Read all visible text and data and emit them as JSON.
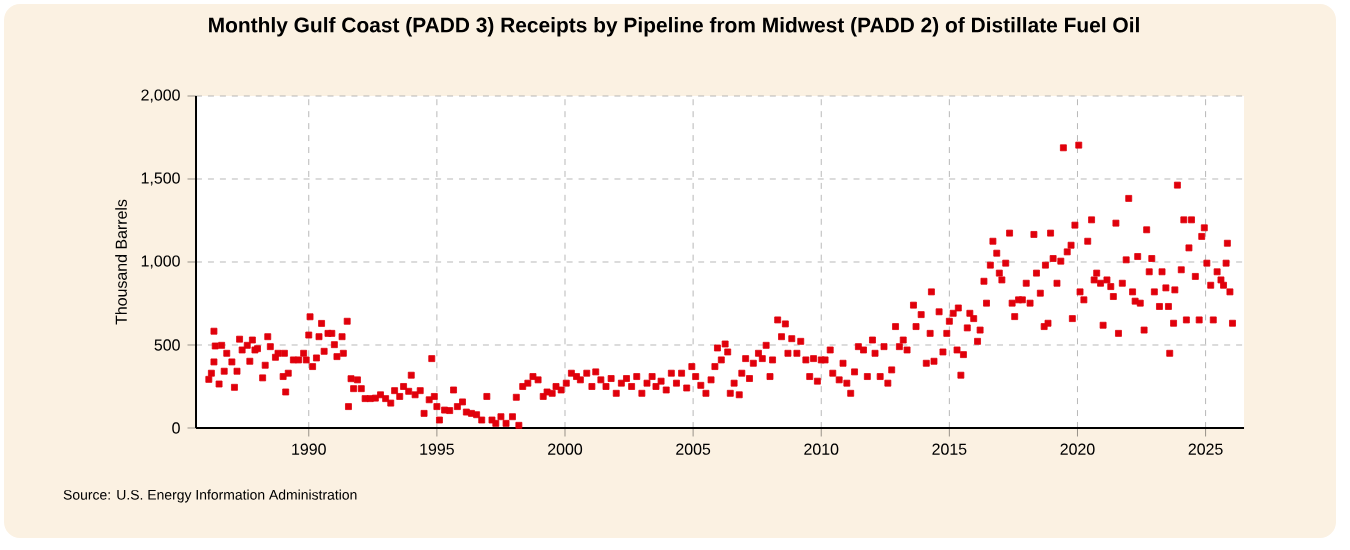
{
  "chart_data": {
    "type": "scatter",
    "title": "Monthly Gulf Coast (PADD 3) Receipts by Pipeline from Midwest (PADD 2) of Distillate Fuel Oil",
    "ylabel": "Thousand Barrels",
    "annotations": [
      "Source: U.S. Energy Information Administration"
    ],
    "color": "#e0000b",
    "marker": "square",
    "grid": true,
    "xlim": [
      1985.6,
      2026.5
    ],
    "ylim": [
      0,
      2000
    ],
    "xticks": [
      1990,
      1995,
      2000,
      2005,
      2010,
      2015,
      2020,
      2025
    ],
    "yticks": [
      0,
      500,
      {
        "value": 1000,
        "label": "1,000"
      },
      {
        "value": 1500,
        "label": "1,500"
      },
      {
        "value": 2000,
        "label": "2,000"
      }
    ],
    "x": [
      1986.1,
      1986.2,
      1986.3,
      1986.3,
      1986.35,
      1986.5,
      1986.6,
      1986.7,
      1986.8,
      1987.0,
      1987.1,
      1987.2,
      1987.3,
      1987.4,
      1987.6,
      1987.7,
      1987.8,
      1987.9,
      1988.0,
      1988.2,
      1988.3,
      1988.4,
      1988.5,
      1988.7,
      1988.8,
      1989.0,
      1989.05,
      1989.1,
      1989.2,
      1989.4,
      1989.6,
      1989.8,
      1989.9,
      1990.0,
      1990.05,
      1990.15,
      1990.3,
      1990.4,
      1990.5,
      1990.6,
      1990.75,
      1990.9,
      1991.0,
      1991.1,
      1991.3,
      1991.35,
      1991.5,
      1991.55,
      1991.65,
      1991.75,
      1991.9,
      1992.05,
      1992.2,
      1992.4,
      1992.6,
      1992.8,
      1993.0,
      1993.2,
      1993.35,
      1993.55,
      1993.7,
      1993.9,
      1994.0,
      1994.15,
      1994.35,
      1994.5,
      1994.7,
      1994.8,
      1994.9,
      1995.0,
      1995.1,
      1995.3,
      1995.5,
      1995.65,
      1995.8,
      1996.0,
      1996.15,
      1996.35,
      1996.55,
      1996.75,
      1996.95,
      1997.15,
      1997.3,
      1997.5,
      1997.7,
      1997.95,
      1998.1,
      1998.2,
      1998.35,
      1998.55,
      1998.75,
      1998.95,
      1999.15,
      1999.3,
      1999.5,
      1999.65,
      1999.85,
      2000.05,
      2000.25,
      2000.45,
      2000.6,
      2000.85,
      2001.05,
      2001.2,
      2001.4,
      2001.6,
      2001.8,
      2002.0,
      2002.2,
      2002.4,
      2002.6,
      2002.8,
      2003.0,
      2003.2,
      2003.4,
      2003.55,
      2003.75,
      2003.95,
      2004.15,
      2004.35,
      2004.55,
      2004.75,
      2004.95,
      2005.1,
      2005.3,
      2005.5,
      2005.7,
      2005.85,
      2005.95,
      2006.1,
      2006.25,
      2006.35,
      2006.45,
      2006.6,
      2006.8,
      2006.9,
      2007.05,
      2007.2,
      2007.35,
      2007.55,
      2007.7,
      2007.85,
      2008.0,
      2008.1,
      2008.3,
      2008.45,
      2008.6,
      2008.7,
      2008.85,
      2009.05,
      2009.2,
      2009.4,
      2009.55,
      2009.7,
      2009.85,
      2010.0,
      2010.15,
      2010.35,
      2010.45,
      2010.7,
      2010.85,
      2011.0,
      2011.15,
      2011.3,
      2011.45,
      2011.65,
      2011.8,
      2012.0,
      2012.1,
      2012.3,
      2012.45,
      2012.6,
      2012.75,
      2012.9,
      2013.05,
      2013.2,
      2013.35,
      2013.6,
      2013.7,
      2013.9,
      2014.1,
      2014.25,
      2014.3,
      2014.4,
      2014.6,
      2014.75,
      2014.9,
      2015.0,
      2015.15,
      2015.3,
      2015.35,
      2015.45,
      2015.55,
      2015.7,
      2015.8,
      2015.95,
      2016.1,
      2016.2,
      2016.35,
      2016.45,
      2016.6,
      2016.7,
      2016.85,
      2016.95,
      2017.05,
      2017.2,
      2017.35,
      2017.45,
      2017.55,
      2017.7,
      2017.85,
      2018.0,
      2018.15,
      2018.3,
      2018.4,
      2018.55,
      2018.7,
      2018.75,
      2018.85,
      2018.95,
      2019.05,
      2019.2,
      2019.35,
      2019.45,
      2019.6,
      2019.75,
      2019.8,
      2019.9,
      2020.05,
      2020.1,
      2020.25,
      2020.4,
      2020.55,
      2020.65,
      2020.75,
      2020.9,
      2021.0,
      2021.15,
      2021.3,
      2021.4,
      2021.5,
      2021.6,
      2021.75,
      2021.9,
      2022.0,
      2022.15,
      2022.25,
      2022.35,
      2022.45,
      2022.6,
      2022.7,
      2022.8,
      2022.9,
      2023.0,
      2023.2,
      2023.3,
      2023.45,
      2023.55,
      2023.6,
      2023.75,
      2023.8,
      2023.9,
      2024.05,
      2024.15,
      2024.25,
      2024.35,
      2024.45,
      2024.6,
      2024.75,
      2024.85,
      2024.95,
      2025.05,
      2025.2,
      2025.3,
      2025.45,
      2025.6,
      2025.7,
      2025.8,
      2025.85,
      2025.95,
      2026.05
    ],
    "values": [
      293,
      330,
      398,
      583,
      494,
      265,
      498,
      342,
      450,
      398,
      245,
      342,
      535,
      470,
      498,
      402,
      530,
      470,
      478,
      302,
      378,
      550,
      490,
      426,
      450,
      310,
      450,
      217,
      330,
      410,
      410,
      450,
      410,
      560,
      670,
      370,
      422,
      550,
      630,
      462,
      570,
      570,
      502,
      430,
      550,
      450,
      643,
      129,
      297,
      237,
      290,
      237,
      177,
      177,
      180,
      200,
      177,
      150,
      225,
      190,
      250,
      221,
      318,
      200,
      225,
      88,
      170,
      418,
      190,
      129,
      48,
      108,
      105,
      229,
      129,
      157,
      96,
      88,
      80,
      48,
      190,
      48,
      28,
      68,
      28,
      68,
      185,
      16,
      250,
      270,
      310,
      290,
      190,
      217,
      209,
      250,
      229,
      270,
      330,
      310,
      290,
      330,
      250,
      338,
      290,
      250,
      298,
      209,
      270,
      298,
      250,
      310,
      209,
      270,
      310,
      250,
      282,
      229,
      330,
      270,
      330,
      241,
      370,
      310,
      257,
      209,
      290,
      370,
      482,
      410,
      506,
      458,
      209,
      270,
      200,
      330,
      418,
      298,
      390,
      450,
      418,
      498,
      310,
      410,
      651,
      550,
      627,
      450,
      538,
      450,
      522,
      410,
      310,
      418,
      282,
      410,
      410,
      470,
      330,
      290,
      390,
      270,
      209,
      338,
      490,
      470,
      310,
      530,
      450,
      310,
      490,
      270,
      350,
      611,
      490,
      530,
      470,
      740,
      611,
      683,
      390,
      570,
      820,
      402,
      700,
      458,
      570,
      643,
      691,
      470,
      723,
      318,
      442,
      603,
      691,
      659,
      522,
      590,
      884,
      752,
      981,
      1125,
      1053,
      933,
      892,
      993,
      1174,
      752,
      671,
      772,
      772,
      872,
      752,
      1166,
      933,
      812,
      611,
      981,
      631,
      1174,
      1021,
      872,
      1005,
      1688,
      1061,
      1101,
      659,
      1222,
      1704,
      820,
      772,
      1125,
      1254,
      892,
      933,
      872,
      619,
      892,
      852,
      792,
      1234,
      570,
      872,
      1013,
      1383,
      820,
      764,
      1033,
      752,
      590,
      1194,
      941,
      1021,
      820,
      732,
      941,
      844,
      732,
      450,
      631,
      832,
      1463,
      953,
      1254,
      651,
      1085,
      1254,
      913,
      651,
      1154,
      1206,
      993,
      860,
      651,
      941,
      892,
      860,
      993,
      1113,
      820,
      631
    ]
  }
}
